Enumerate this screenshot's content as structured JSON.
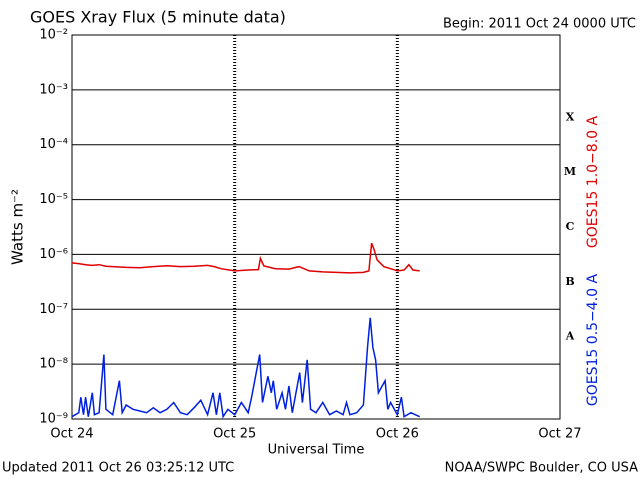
{
  "chart_data": {
    "type": "line",
    "title": "GOES Xray Flux (5 minute data)",
    "subtitle": "Begin:  2011 Oct 24 0000 UTC",
    "x_label": "Universal Time",
    "y_label": "Watts m⁻²",
    "footer_left": "Updated 2011 Oct 26 03:25:12 UTC",
    "footer_right": "NOAA/SWPC Boulder, CO USA",
    "annotations": [
      "X",
      "M",
      "C",
      "B",
      "A"
    ],
    "log_y": true,
    "grid": true,
    "xlim": [
      0,
      72
    ],
    "xticks": [
      {
        "value": 0,
        "label": "Oct 24"
      },
      {
        "value": 24,
        "label": "Oct 25"
      },
      {
        "value": 48,
        "label": "Oct 26"
      },
      {
        "value": 72,
        "label": "Oct 27"
      }
    ],
    "ylim": [
      1e-09,
      0.01
    ],
    "yticks": [
      {
        "value": 1e-09,
        "label": "10⁻⁹"
      },
      {
        "value": 1e-08,
        "label": "10⁻⁸"
      },
      {
        "value": 1e-07,
        "label": "10⁻⁷"
      },
      {
        "value": 1e-06,
        "label": "10⁻⁶"
      },
      {
        "value": 1e-05,
        "label": "10⁻⁵"
      },
      {
        "value": 0.0001,
        "label": "10⁻⁴"
      },
      {
        "value": 0.001,
        "label": "10⁻³"
      },
      {
        "value": 0.01,
        "label": "10⁻²"
      }
    ],
    "series": [
      {
        "name": "GOES15 1.0−8.0 A",
        "color": "#e00000",
        "x": [
          0,
          1,
          2,
          3,
          4,
          5,
          6,
          8,
          10,
          12,
          14,
          16,
          18,
          20,
          21,
          22,
          24,
          26,
          27.5,
          27.8,
          28.3,
          30,
          32,
          33.5,
          35,
          37,
          39,
          41,
          43,
          43.8,
          44.2,
          44.6,
          45,
          46,
          47,
          48,
          49,
          49.7,
          50.3,
          51.3
        ],
        "values": [
          7e-07,
          6.8e-07,
          6.5e-07,
          6.3e-07,
          6.5e-07,
          6.1e-07,
          6e-07,
          5.8e-07,
          5.7e-07,
          6e-07,
          6.2e-07,
          6e-07,
          6.1e-07,
          6.3e-07,
          6e-07,
          5.5e-07,
          5e-07,
          5.2e-07,
          5.3e-07,
          8.5e-07,
          6.2e-07,
          5.5e-07,
          5.4e-07,
          6e-07,
          5e-07,
          4.8e-07,
          4.7e-07,
          4.6e-07,
          4.7e-07,
          5e-07,
          1.6e-06,
          1.2e-06,
          8e-07,
          6e-07,
          5.5e-07,
          5e-07,
          5.2e-07,
          6.5e-07,
          5.2e-07,
          5e-07
        ]
      },
      {
        "name": "GOES15 0.5−4.0 A",
        "color": "#0020e0",
        "x": [
          0,
          1,
          1.3,
          1.7,
          2,
          2.4,
          3,
          3.3,
          4,
          4.7,
          5,
          6,
          7,
          7.4,
          8,
          9,
          10,
          11,
          12,
          13,
          14,
          15,
          16,
          17,
          18,
          19,
          20,
          20.8,
          21.3,
          21.8,
          22.3,
          23,
          24,
          25,
          26,
          26.5,
          27.7,
          28.1,
          28.9,
          29.4,
          29.7,
          30.2,
          31,
          31.5,
          32,
          32.5,
          33.6,
          34,
          34.7,
          35.2,
          36,
          37,
          38,
          39,
          40,
          40.5,
          41,
          42,
          43,
          43.6,
          44,
          44.4,
          44.8,
          45.2,
          46.2,
          46.6,
          47,
          48,
          48.6,
          49,
          50,
          51.3
        ],
        "values": [
          1.1e-09,
          1.3e-09,
          2.5e-09,
          1.2e-09,
          2.5e-09,
          1.1e-09,
          3e-09,
          1.2e-09,
          1.3e-09,
          1.5e-08,
          1.5e-09,
          1.2e-09,
          5e-09,
          1.3e-09,
          1.8e-09,
          1.5e-09,
          1.4e-09,
          1.3e-09,
          1.6e-09,
          1.3e-09,
          1.5e-09,
          2e-09,
          1.3e-09,
          1.2e-09,
          1.6e-09,
          2.2e-09,
          1.2e-09,
          3e-09,
          1.2e-09,
          3e-09,
          1.1e-09,
          1.5e-09,
          1.2e-09,
          2e-09,
          1.3e-09,
          2.5e-09,
          1.5e-08,
          2e-09,
          6e-09,
          3e-09,
          5e-09,
          1.5e-09,
          3e-09,
          1.5e-09,
          4e-09,
          1.3e-09,
          7e-09,
          2e-09,
          1.2e-08,
          1.5e-09,
          1.3e-09,
          2e-09,
          1.2e-09,
          1.4e-09,
          1.2e-09,
          2e-09,
          1.2e-09,
          1.3e-09,
          1.8e-09,
          2e-08,
          7e-08,
          2e-08,
          1.2e-08,
          3e-09,
          5e-09,
          1.5e-09,
          2e-09,
          1.2e-09,
          2.5e-09,
          1.1e-09,
          1.3e-09,
          1.1e-09
        ]
      }
    ]
  }
}
